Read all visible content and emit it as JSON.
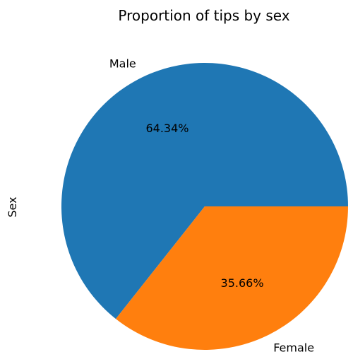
{
  "chart_data": {
    "type": "pie",
    "title": "Proportion of tips by sex",
    "ylabel": "Sex",
    "slices": [
      {
        "label": "Male",
        "value": 64.34,
        "pct_label": "64.34%",
        "color": "#1f77b4"
      },
      {
        "label": "Female",
        "value": 35.66,
        "pct_label": "35.66%",
        "color": "#ff7f0e"
      }
    ]
  }
}
